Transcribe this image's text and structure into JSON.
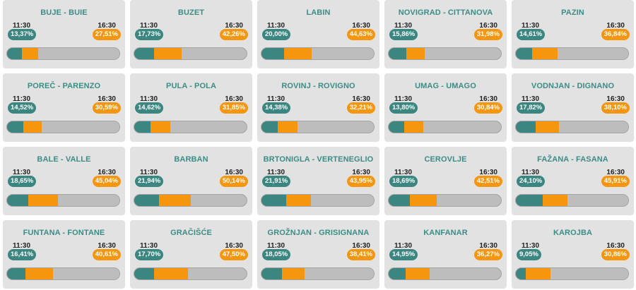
{
  "colors": {
    "teal": "#3b8681",
    "orange": "#f6960e",
    "title": "#3c8c86",
    "card_bg": "#e2e2e2",
    "bar_bg": "#bdbdbd"
  },
  "cards": [
    {
      "name": "BUJE - BUIE",
      "time1": "11:30",
      "pct1": "13,37%",
      "time2": "16:30",
      "pct2": "27,51%",
      "v1": 0.1337,
      "v2": 0.2751
    },
    {
      "name": "BUZET",
      "time1": "11:30",
      "pct1": "17,73%",
      "time2": "16:30",
      "pct2": "42,26%",
      "v1": 0.1773,
      "v2": 0.4226
    },
    {
      "name": "LABIN",
      "time1": "11:30",
      "pct1": "20,00%",
      "time2": "16:30",
      "pct2": "44,63%",
      "v1": 0.2,
      "v2": 0.4463
    },
    {
      "name": "NOVIGRAD - CITTANOVA",
      "time1": "11:30",
      "pct1": "15,86%",
      "time2": "16:30",
      "pct2": "31,98%",
      "v1": 0.1586,
      "v2": 0.3198
    },
    {
      "name": "PAZIN",
      "time1": "11:30",
      "pct1": "14,61%",
      "time2": "16:30",
      "pct2": "36,84%",
      "v1": 0.1461,
      "v2": 0.3684
    },
    {
      "name": "POREČ - PARENZO",
      "time1": "11:30",
      "pct1": "14,52%",
      "time2": "16:30",
      "pct2": "30,59%",
      "v1": 0.1452,
      "v2": 0.3059
    },
    {
      "name": "PULA - POLA",
      "time1": "11:30",
      "pct1": "14,62%",
      "time2": "16:30",
      "pct2": "31,85%",
      "v1": 0.1462,
      "v2": 0.3185
    },
    {
      "name": "ROVINJ - ROVIGNO",
      "time1": "11:30",
      "pct1": "14,38%",
      "time2": "16:30",
      "pct2": "32,21%",
      "v1": 0.1438,
      "v2": 0.3221
    },
    {
      "name": "UMAG - UMAGO",
      "time1": "11:30",
      "pct1": "13,80%",
      "time2": "16:30",
      "pct2": "30,84%",
      "v1": 0.138,
      "v2": 0.3084
    },
    {
      "name": "VODNJAN - DIGNANO",
      "time1": "11:30",
      "pct1": "17,82%",
      "time2": "16:30",
      "pct2": "38,10%",
      "v1": 0.1782,
      "v2": 0.381
    },
    {
      "name": "BALE - VALLE",
      "time1": "11:30",
      "pct1": "18,65%",
      "time2": "16:30",
      "pct2": "45,04%",
      "v1": 0.1865,
      "v2": 0.4504
    },
    {
      "name": "BARBAN",
      "time1": "11:30",
      "pct1": "21,94%",
      "time2": "16:30",
      "pct2": "50,14%",
      "v1": 0.2194,
      "v2": 0.5014
    },
    {
      "name": "BRTONIGLA - VERTENEGLIO",
      "time1": "11:30",
      "pct1": "21,91%",
      "time2": "16:30",
      "pct2": "43,95%",
      "v1": 0.2191,
      "v2": 0.4395
    },
    {
      "name": "CEROVLJE",
      "time1": "11:30",
      "pct1": "18,69%",
      "time2": "16:30",
      "pct2": "42,51%",
      "v1": 0.1869,
      "v2": 0.4251
    },
    {
      "name": "FAŽANA - FASANA",
      "time1": "11:30",
      "pct1": "24,10%",
      "time2": "16:30",
      "pct2": "45,91%",
      "v1": 0.241,
      "v2": 0.4591
    },
    {
      "name": "FUNTANA - FONTANE",
      "time1": "11:30",
      "pct1": "16,41%",
      "time2": "16:30",
      "pct2": "40,61%",
      "v1": 0.1641,
      "v2": 0.4061
    },
    {
      "name": "GRAČIŠĆE",
      "time1": "11:30",
      "pct1": "17,70%",
      "time2": "16:30",
      "pct2": "47,50%",
      "v1": 0.177,
      "v2": 0.475
    },
    {
      "name": "GROŽNJAN - GRISIGNANA",
      "time1": "11:30",
      "pct1": "18,05%",
      "time2": "16:30",
      "pct2": "38,41%",
      "v1": 0.1805,
      "v2": 0.3841
    },
    {
      "name": "KANFANAR",
      "time1": "11:30",
      "pct1": "14,95%",
      "time2": "16:30",
      "pct2": "36,27%",
      "v1": 0.1495,
      "v2": 0.3627
    },
    {
      "name": "KAROJBA",
      "time1": "11:30",
      "pct1": "9,05%",
      "time2": "16:30",
      "pct2": "30,86%",
      "v1": 0.0905,
      "v2": 0.3086
    }
  ]
}
